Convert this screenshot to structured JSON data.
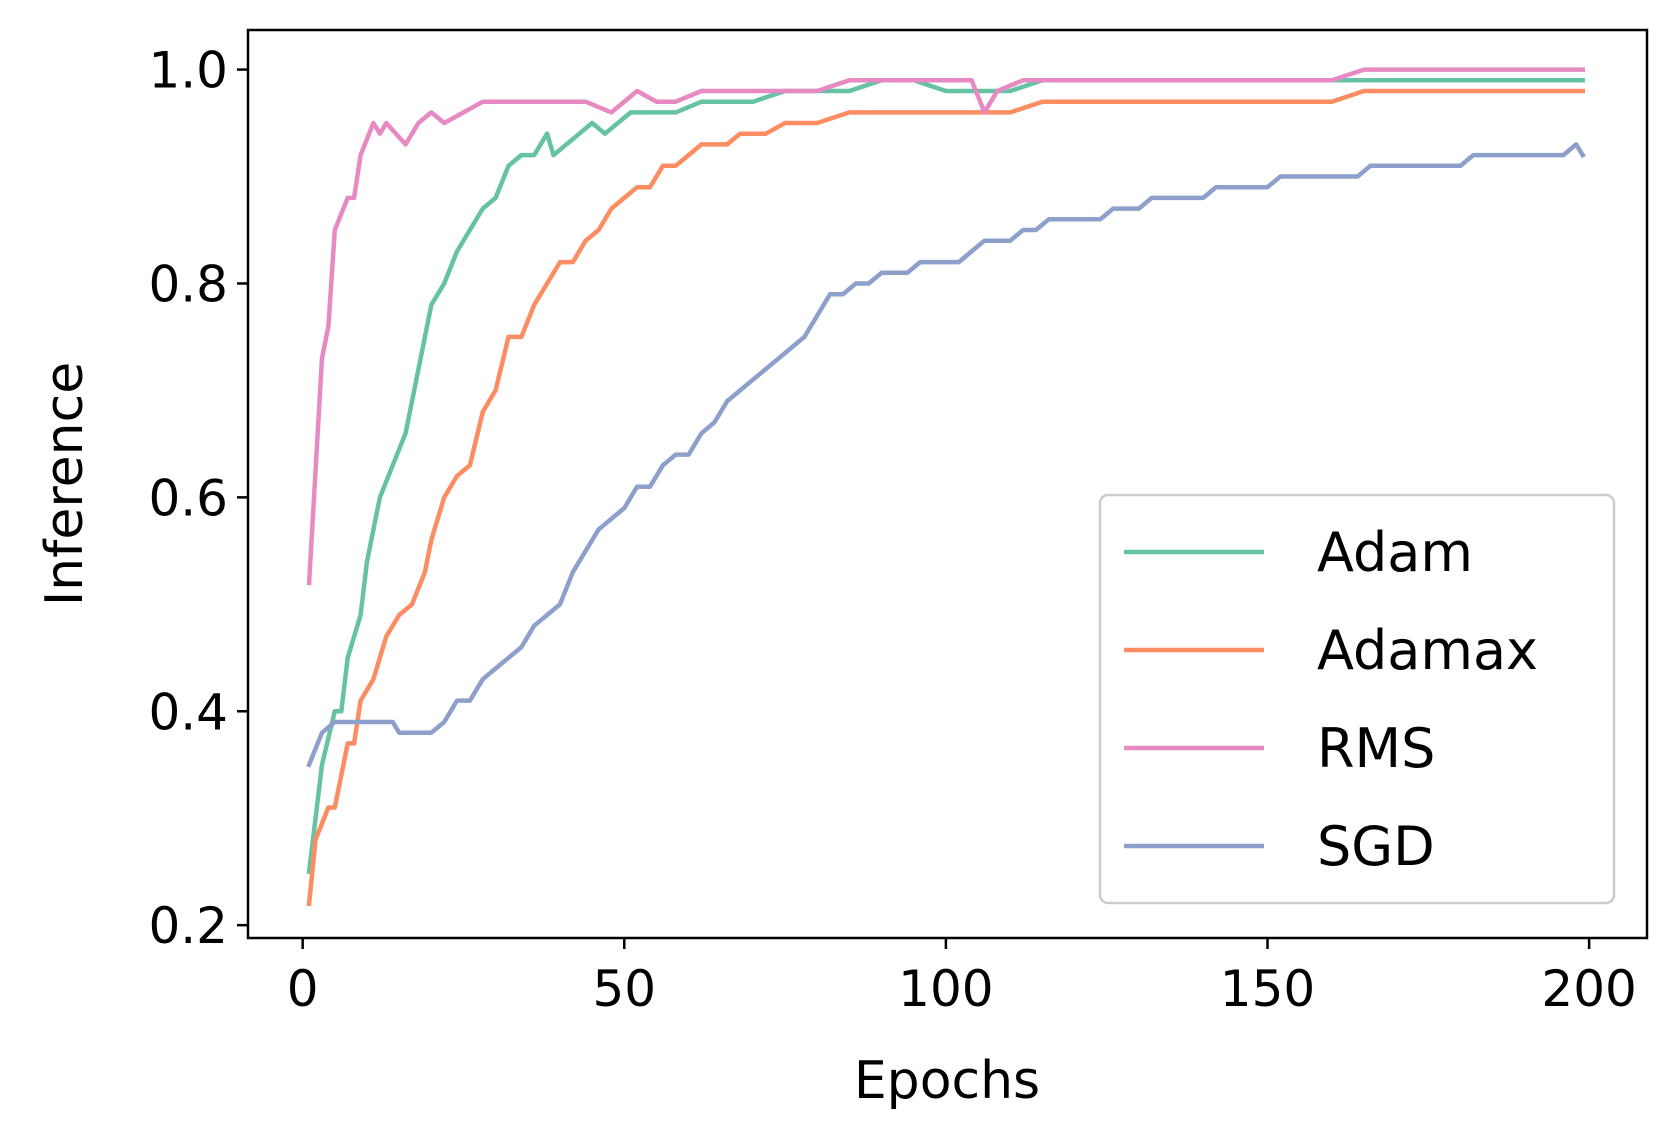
{
  "chart_data": {
    "type": "line",
    "title": "",
    "xlabel": "Epochs",
    "ylabel": "Inference",
    "xlim": [
      -8.5,
      209
    ],
    "ylim": [
      0.188,
      1.037
    ],
    "xticks": [
      0,
      50,
      100,
      150,
      200
    ],
    "xtick_labels": [
      "0",
      "50",
      "100",
      "150",
      "200"
    ],
    "yticks": [
      0.2,
      0.4,
      0.6,
      0.8,
      1.0
    ],
    "ytick_labels": [
      "0.2",
      "0.4",
      "0.6",
      "0.8",
      "1.0"
    ],
    "grid": false,
    "legend_position": "lower-right",
    "series": [
      {
        "name": "Adam",
        "color": "#66c2a5",
        "points": [
          [
            1,
            0.25
          ],
          [
            3,
            0.35
          ],
          [
            5,
            0.4
          ],
          [
            6,
            0.4
          ],
          [
            7,
            0.45
          ],
          [
            9,
            0.49
          ],
          [
            10,
            0.54
          ],
          [
            12,
            0.6
          ],
          [
            14,
            0.63
          ],
          [
            16,
            0.66
          ],
          [
            18,
            0.72
          ],
          [
            20,
            0.78
          ],
          [
            22,
            0.8
          ],
          [
            24,
            0.83
          ],
          [
            26,
            0.85
          ],
          [
            28,
            0.87
          ],
          [
            30,
            0.88
          ],
          [
            32,
            0.91
          ],
          [
            34,
            0.92
          ],
          [
            36,
            0.92
          ],
          [
            38,
            0.94
          ],
          [
            39,
            0.92
          ],
          [
            41,
            0.93
          ],
          [
            43,
            0.94
          ],
          [
            45,
            0.95
          ],
          [
            47,
            0.94
          ],
          [
            49,
            0.95
          ],
          [
            51,
            0.96
          ],
          [
            55,
            0.96
          ],
          [
            58,
            0.96
          ],
          [
            62,
            0.97
          ],
          [
            66,
            0.97
          ],
          [
            70,
            0.97
          ],
          [
            75,
            0.98
          ],
          [
            80,
            0.98
          ],
          [
            85,
            0.98
          ],
          [
            90,
            0.99
          ],
          [
            95,
            0.99
          ],
          [
            100,
            0.98
          ],
          [
            105,
            0.98
          ],
          [
            110,
            0.98
          ],
          [
            115,
            0.99
          ],
          [
            120,
            0.99
          ],
          [
            125,
            0.99
          ],
          [
            130,
            0.99
          ],
          [
            135,
            0.99
          ],
          [
            140,
            0.99
          ],
          [
            145,
            0.99
          ],
          [
            150,
            0.99
          ],
          [
            155,
            0.99
          ],
          [
            160,
            0.99
          ],
          [
            165,
            0.99
          ],
          [
            170,
            0.99
          ],
          [
            175,
            0.99
          ],
          [
            180,
            0.99
          ],
          [
            185,
            0.99
          ],
          [
            190,
            0.99
          ],
          [
            195,
            0.99
          ],
          [
            199,
            0.99
          ]
        ]
      },
      {
        "name": "Adamax",
        "color": "#fc8d62",
        "points": [
          [
            1,
            0.22
          ],
          [
            2,
            0.28
          ],
          [
            4,
            0.31
          ],
          [
            5,
            0.31
          ],
          [
            7,
            0.37
          ],
          [
            8,
            0.37
          ],
          [
            9,
            0.41
          ],
          [
            11,
            0.43
          ],
          [
            13,
            0.47
          ],
          [
            15,
            0.49
          ],
          [
            17,
            0.5
          ],
          [
            19,
            0.53
          ],
          [
            20,
            0.56
          ],
          [
            22,
            0.6
          ],
          [
            24,
            0.62
          ],
          [
            26,
            0.63
          ],
          [
            28,
            0.68
          ],
          [
            30,
            0.7
          ],
          [
            32,
            0.75
          ],
          [
            34,
            0.75
          ],
          [
            36,
            0.78
          ],
          [
            38,
            0.8
          ],
          [
            40,
            0.82
          ],
          [
            42,
            0.82
          ],
          [
            44,
            0.84
          ],
          [
            46,
            0.85
          ],
          [
            48,
            0.87
          ],
          [
            50,
            0.88
          ],
          [
            52,
            0.89
          ],
          [
            54,
            0.89
          ],
          [
            56,
            0.91
          ],
          [
            58,
            0.91
          ],
          [
            60,
            0.92
          ],
          [
            62,
            0.93
          ],
          [
            64,
            0.93
          ],
          [
            66,
            0.93
          ],
          [
            68,
            0.94
          ],
          [
            70,
            0.94
          ],
          [
            72,
            0.94
          ],
          [
            75,
            0.95
          ],
          [
            78,
            0.95
          ],
          [
            80,
            0.95
          ],
          [
            85,
            0.96
          ],
          [
            90,
            0.96
          ],
          [
            95,
            0.96
          ],
          [
            100,
            0.96
          ],
          [
            105,
            0.96
          ],
          [
            110,
            0.96
          ],
          [
            115,
            0.97
          ],
          [
            120,
            0.97
          ],
          [
            125,
            0.97
          ],
          [
            130,
            0.97
          ],
          [
            135,
            0.97
          ],
          [
            140,
            0.97
          ],
          [
            145,
            0.97
          ],
          [
            150,
            0.97
          ],
          [
            155,
            0.97
          ],
          [
            160,
            0.97
          ],
          [
            165,
            0.98
          ],
          [
            170,
            0.98
          ],
          [
            175,
            0.98
          ],
          [
            180,
            0.98
          ],
          [
            185,
            0.98
          ],
          [
            190,
            0.98
          ],
          [
            195,
            0.98
          ],
          [
            199,
            0.98
          ]
        ]
      },
      {
        "name": "RMS",
        "color": "#e78ac3",
        "points": [
          [
            1,
            0.52
          ],
          [
            3,
            0.73
          ],
          [
            4,
            0.76
          ],
          [
            5,
            0.85
          ],
          [
            7,
            0.88
          ],
          [
            8,
            0.88
          ],
          [
            9,
            0.92
          ],
          [
            11,
            0.95
          ],
          [
            12,
            0.94
          ],
          [
            13,
            0.95
          ],
          [
            16,
            0.93
          ],
          [
            18,
            0.95
          ],
          [
            20,
            0.96
          ],
          [
            22,
            0.95
          ],
          [
            25,
            0.96
          ],
          [
            28,
            0.97
          ],
          [
            32,
            0.97
          ],
          [
            36,
            0.97
          ],
          [
            40,
            0.97
          ],
          [
            44,
            0.97
          ],
          [
            48,
            0.96
          ],
          [
            52,
            0.98
          ],
          [
            55,
            0.97
          ],
          [
            58,
            0.97
          ],
          [
            62,
            0.98
          ],
          [
            66,
            0.98
          ],
          [
            70,
            0.98
          ],
          [
            75,
            0.98
          ],
          [
            80,
            0.98
          ],
          [
            85,
            0.99
          ],
          [
            90,
            0.99
          ],
          [
            95,
            0.99
          ],
          [
            100,
            0.99
          ],
          [
            104,
            0.99
          ],
          [
            106,
            0.96
          ],
          [
            108,
            0.98
          ],
          [
            112,
            0.99
          ],
          [
            118,
            0.99
          ],
          [
            125,
            0.99
          ],
          [
            130,
            0.99
          ],
          [
            135,
            0.99
          ],
          [
            140,
            0.99
          ],
          [
            145,
            0.99
          ],
          [
            150,
            0.99
          ],
          [
            155,
            0.99
          ],
          [
            160,
            0.99
          ],
          [
            165,
            1.0
          ],
          [
            170,
            1.0
          ],
          [
            175,
            1.0
          ],
          [
            180,
            1.0
          ],
          [
            185,
            1.0
          ],
          [
            190,
            1.0
          ],
          [
            195,
            1.0
          ],
          [
            199,
            1.0
          ]
        ]
      },
      {
        "name": "SGD",
        "color": "#8da0cb",
        "points": [
          [
            1,
            0.35
          ],
          [
            3,
            0.38
          ],
          [
            5,
            0.39
          ],
          [
            8,
            0.39
          ],
          [
            11,
            0.39
          ],
          [
            14,
            0.39
          ],
          [
            15,
            0.38
          ],
          [
            18,
            0.38
          ],
          [
            20,
            0.38
          ],
          [
            22,
            0.39
          ],
          [
            24,
            0.41
          ],
          [
            26,
            0.41
          ],
          [
            28,
            0.43
          ],
          [
            30,
            0.44
          ],
          [
            32,
            0.45
          ],
          [
            34,
            0.46
          ],
          [
            36,
            0.48
          ],
          [
            38,
            0.49
          ],
          [
            40,
            0.5
          ],
          [
            42,
            0.53
          ],
          [
            44,
            0.55
          ],
          [
            46,
            0.57
          ],
          [
            48,
            0.58
          ],
          [
            50,
            0.59
          ],
          [
            52,
            0.61
          ],
          [
            54,
            0.61
          ],
          [
            56,
            0.63
          ],
          [
            58,
            0.64
          ],
          [
            60,
            0.64
          ],
          [
            62,
            0.66
          ],
          [
            64,
            0.67
          ],
          [
            66,
            0.69
          ],
          [
            68,
            0.7
          ],
          [
            70,
            0.71
          ],
          [
            72,
            0.72
          ],
          [
            74,
            0.73
          ],
          [
            76,
            0.74
          ],
          [
            78,
            0.75
          ],
          [
            80,
            0.77
          ],
          [
            82,
            0.79
          ],
          [
            84,
            0.79
          ],
          [
            86,
            0.8
          ],
          [
            88,
            0.8
          ],
          [
            90,
            0.81
          ],
          [
            92,
            0.81
          ],
          [
            94,
            0.81
          ],
          [
            96,
            0.82
          ],
          [
            98,
            0.82
          ],
          [
            100,
            0.82
          ],
          [
            102,
            0.82
          ],
          [
            104,
            0.83
          ],
          [
            106,
            0.84
          ],
          [
            108,
            0.84
          ],
          [
            110,
            0.84
          ],
          [
            112,
            0.85
          ],
          [
            114,
            0.85
          ],
          [
            116,
            0.86
          ],
          [
            118,
            0.86
          ],
          [
            120,
            0.86
          ],
          [
            122,
            0.86
          ],
          [
            124,
            0.86
          ],
          [
            126,
            0.87
          ],
          [
            128,
            0.87
          ],
          [
            130,
            0.87
          ],
          [
            132,
            0.88
          ],
          [
            134,
            0.88
          ],
          [
            136,
            0.88
          ],
          [
            138,
            0.88
          ],
          [
            140,
            0.88
          ],
          [
            142,
            0.89
          ],
          [
            144,
            0.89
          ],
          [
            146,
            0.89
          ],
          [
            148,
            0.89
          ],
          [
            150,
            0.89
          ],
          [
            152,
            0.9
          ],
          [
            154,
            0.9
          ],
          [
            156,
            0.9
          ],
          [
            158,
            0.9
          ],
          [
            160,
            0.9
          ],
          [
            162,
            0.9
          ],
          [
            164,
            0.9
          ],
          [
            166,
            0.91
          ],
          [
            168,
            0.91
          ],
          [
            170,
            0.91
          ],
          [
            172,
            0.91
          ],
          [
            174,
            0.91
          ],
          [
            176,
            0.91
          ],
          [
            178,
            0.91
          ],
          [
            180,
            0.91
          ],
          [
            182,
            0.92
          ],
          [
            184,
            0.92
          ],
          [
            186,
            0.92
          ],
          [
            188,
            0.92
          ],
          [
            190,
            0.92
          ],
          [
            192,
            0.92
          ],
          [
            194,
            0.92
          ],
          [
            196,
            0.92
          ],
          [
            198,
            0.93
          ],
          [
            199,
            0.92
          ]
        ]
      }
    ]
  }
}
